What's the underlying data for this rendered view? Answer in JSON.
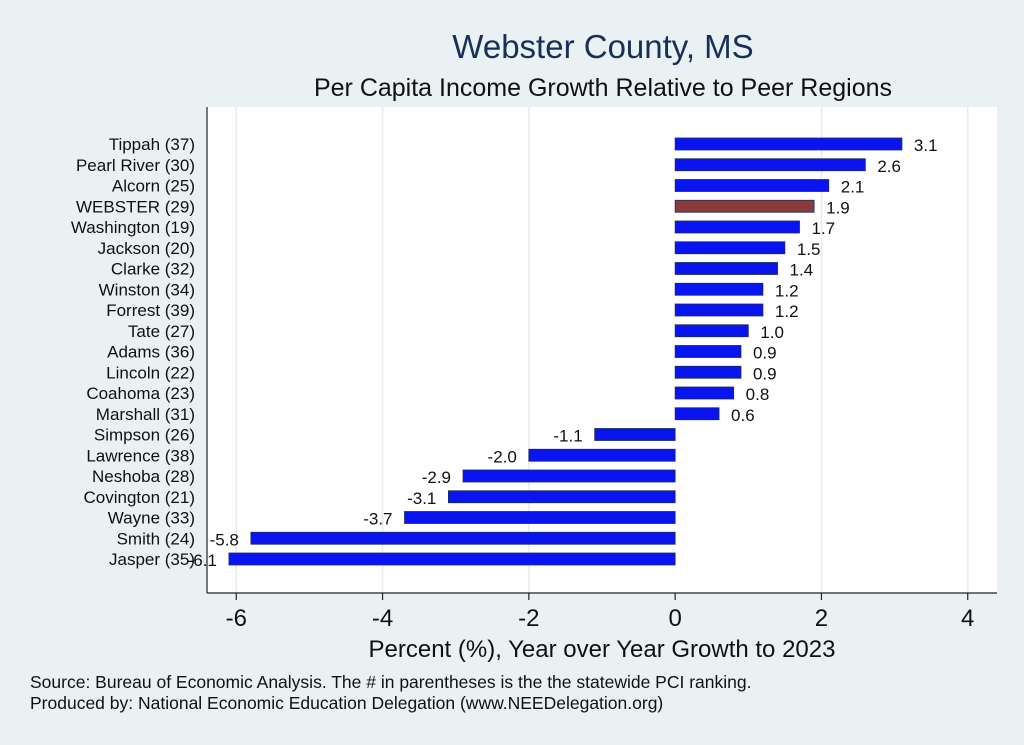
{
  "chart_data": {
    "type": "bar",
    "orientation": "horizontal",
    "title": "Webster County, MS",
    "subtitle": "Per Capita Income Growth Relative to Peer Regions",
    "xlabel": "Percent (%), Year over Year Growth to 2023",
    "ylabel": "",
    "xlim": [
      -6.4,
      4.4
    ],
    "xticks": [
      -6,
      -4,
      -2,
      0,
      2,
      4
    ],
    "grid": true,
    "categories": [
      "Tippah (37)",
      "Pearl River (30)",
      "Alcorn (25)",
      "WEBSTER (29)",
      "Washington (19)",
      "Jackson (20)",
      "Clarke (32)",
      "Winston (34)",
      "Forrest (39)",
      "Tate (27)",
      "Adams (36)",
      "Lincoln (22)",
      "Coahoma (23)",
      "Marshall (31)",
      "Simpson (26)",
      "Lawrence (38)",
      "Neshoba (28)",
      "Covington (21)",
      "Wayne (33)",
      "Smith (24)",
      "Jasper (35)"
    ],
    "values": [
      3.1,
      2.6,
      2.1,
      1.9,
      1.7,
      1.5,
      1.4,
      1.2,
      1.2,
      1.0,
      0.9,
      0.9,
      0.8,
      0.6,
      -1.1,
      -2.0,
      -2.9,
      -3.1,
      -3.7,
      -5.8,
      -6.1
    ],
    "value_labels": [
      "3.1",
      "2.6",
      "2.1",
      "1.9",
      "1.7",
      "1.5",
      "1.4",
      "1.2",
      "1.2",
      "1.0",
      "0.9",
      "0.9",
      "0.8",
      "0.6",
      "-1.1",
      "-2.0",
      "-2.9",
      "-3.1",
      "-3.7",
      "-5.8",
      "-6.1"
    ],
    "highlight_index": 3,
    "colors": {
      "bar": "#0a14f0",
      "highlight": "#8b3a3a",
      "bar_edge": "#1a2e5a",
      "plot_bg": "#ffffff",
      "page_bg": "#eaf1f3",
      "grid": "#e4ecef",
      "title": "#1a2e5a"
    }
  },
  "footer": {
    "source": "Source: Bureau of Economic Analysis. The # in parentheses is the the statewide PCI ranking.",
    "produced_by": "Produced by: National Economic Education Delegation (www.NEEDelegation.org)"
  }
}
